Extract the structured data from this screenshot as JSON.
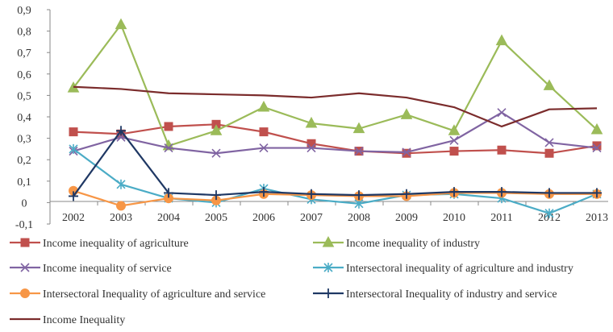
{
  "chart_data": {
    "type": "line",
    "categories": [
      "2002",
      "2003",
      "2004",
      "2005",
      "2006",
      "2007",
      "2008",
      "2009",
      "2010",
      "2011",
      "2012",
      "2013"
    ],
    "ylim": [
      -0.1,
      0.9
    ],
    "yticks": [
      "-0,1",
      "0",
      "0,1",
      "0,2",
      "0,3",
      "0,4",
      "0,5",
      "0,6",
      "0,7",
      "0,8",
      "0,9"
    ],
    "yticks_values": [
      -0.1,
      0,
      0.1,
      0.2,
      0.3,
      0.4,
      0.5,
      0.6,
      0.7,
      0.8,
      0.9
    ],
    "grid": false,
    "legend_position": "bottom",
    "series": [
      {
        "name": "Income inequality of agriculture",
        "color": "#c0504d",
        "marker": "square",
        "values": [
          0.33,
          0.32,
          0.355,
          0.365,
          0.33,
          0.275,
          0.24,
          0.23,
          0.24,
          0.245,
          0.23,
          0.265
        ]
      },
      {
        "name": "Income inequality of industry",
        "color": "#9bbb59",
        "marker": "triangle",
        "values": [
          0.535,
          0.83,
          0.265,
          0.335,
          0.445,
          0.37,
          0.345,
          0.41,
          0.335,
          0.755,
          0.545,
          0.34
        ]
      },
      {
        "name": "Income inequality of service",
        "color": "#8064a2",
        "marker": "x",
        "values": [
          0.24,
          0.305,
          0.255,
          0.23,
          0.255,
          0.255,
          0.24,
          0.235,
          0.29,
          0.42,
          0.28,
          0.255
        ]
      },
      {
        "name": "Intersectoral inequality  of agriculture and industry",
        "color": "#4bacc6",
        "marker": "asterisk",
        "values": [
          0.25,
          0.085,
          0.02,
          0.0,
          0.065,
          0.015,
          -0.005,
          0.035,
          0.04,
          0.02,
          -0.05,
          0.04
        ]
      },
      {
        "name": "Intersectoral Inequality of agriculture and service",
        "color": "#f79646",
        "marker": "circle",
        "values": [
          0.055,
          -0.015,
          0.02,
          0.01,
          0.04,
          0.035,
          0.03,
          0.03,
          0.045,
          0.045,
          0.04,
          0.04
        ]
      },
      {
        "name": "Intersectoral Inequality of industry and service",
        "color": "#1f3864",
        "marker": "plus",
        "values": [
          0.03,
          0.335,
          0.045,
          0.035,
          0.05,
          0.04,
          0.035,
          0.04,
          0.05,
          0.05,
          0.045,
          0.045
        ]
      },
      {
        "name": "Income Inequality",
        "color": "#7b2c2c",
        "marker": "none",
        "values": [
          0.54,
          0.53,
          0.51,
          0.505,
          0.5,
          0.49,
          0.51,
          0.49,
          0.445,
          0.355,
          0.435,
          0.44
        ]
      }
    ]
  }
}
